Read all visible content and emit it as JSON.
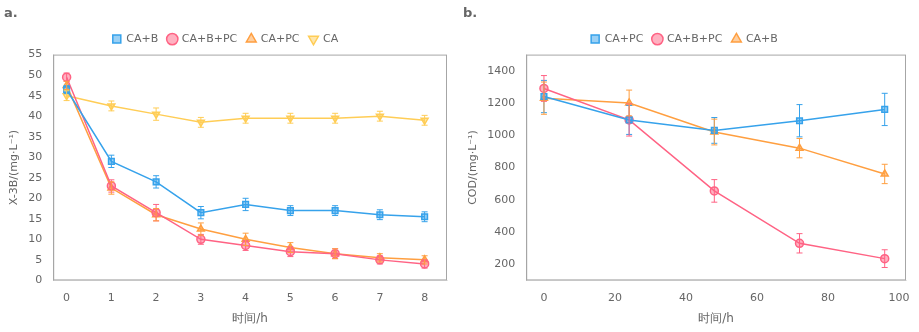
{
  "chart_data": [
    {
      "type": "line",
      "title": "a.",
      "x_label": "时间/h",
      "y_label": "X-3B/(mg·L⁻¹)",
      "x": [
        0,
        1,
        2,
        3,
        4,
        5,
        6,
        7,
        8
      ],
      "xlim": [
        -0.3,
        8.5
      ],
      "ylim": [
        0,
        55
      ],
      "xticks": [
        0,
        1,
        2,
        3,
        4,
        5,
        6,
        7,
        8
      ],
      "yticks": [
        0,
        5,
        10,
        15,
        20,
        25,
        30,
        35,
        40,
        45,
        50,
        55
      ],
      "grid": false,
      "legend": "top",
      "series": [
        {
          "name": "CA+B",
          "values": [
            46.5,
            29.0,
            24.0,
            16.5,
            18.5,
            17.0,
            17.0,
            16.0,
            15.5
          ],
          "yerr": [
            1.0,
            1.5,
            1.5,
            1.5,
            1.5,
            1.2,
            1.2,
            1.2,
            1.2
          ],
          "marker": "square",
          "line_style": "solid"
        },
        {
          "name": "CA+B+PC",
          "values": [
            49.5,
            23.0,
            16.5,
            10.0,
            8.5,
            7.0,
            6.5,
            5.0,
            4.0
          ],
          "yerr": [
            1.0,
            1.5,
            2.0,
            1.2,
            1.2,
            1.2,
            1.2,
            1.0,
            1.0
          ],
          "marker": "circle",
          "line_style": "solid"
        },
        {
          "name": "CA+PC",
          "values": [
            47.5,
            22.5,
            16.0,
            12.5,
            10.0,
            8.0,
            6.5,
            5.5,
            5.0
          ],
          "yerr": [
            1.0,
            1.5,
            1.5,
            1.5,
            1.5,
            1.2,
            1.2,
            1.0,
            1.0
          ],
          "marker": "triangle-up",
          "line_style": "solid"
        },
        {
          "name": "CA",
          "values": [
            45.0,
            42.5,
            40.5,
            38.5,
            39.5,
            39.5,
            39.5,
            40.0,
            39.0
          ],
          "yerr": [
            1.2,
            1.2,
            1.5,
            1.2,
            1.2,
            1.2,
            1.2,
            1.2,
            1.2
          ],
          "marker": "triangle-down",
          "line_style": "solid"
        }
      ]
    },
    {
      "type": "line",
      "title": "b.",
      "x_label": "时间/h",
      "y_label": "COD/(mg·L⁻¹)",
      "x": [
        0,
        24,
        48,
        72,
        96
      ],
      "xlim": [
        -5,
        102
      ],
      "ylim": [
        100,
        1500
      ],
      "xticks": [
        0,
        20,
        40,
        60,
        80,
        100
      ],
      "yticks": [
        200,
        400,
        600,
        800,
        1000,
        1200,
        1400
      ],
      "grid": false,
      "legend": "top",
      "series": [
        {
          "name": "CA+PC",
          "values": [
            1240,
            1095,
            1030,
            1090,
            1160
          ],
          "yerr": [
            100,
            90,
            80,
            100,
            100
          ],
          "marker": "square",
          "line_style": "solid"
        },
        {
          "name": "CA+B+PC",
          "values": [
            1290,
            1095,
            655,
            330,
            235
          ],
          "yerr": [
            80,
            100,
            70,
            60,
            55
          ],
          "marker": "circle",
          "line_style": "solid"
        },
        {
          "name": "CA+B",
          "values": [
            1230,
            1200,
            1020,
            920,
            760
          ],
          "yerr": [
            100,
            80,
            80,
            60,
            60
          ],
          "marker": "triangle-up",
          "line_style": "solid"
        }
      ]
    }
  ]
}
